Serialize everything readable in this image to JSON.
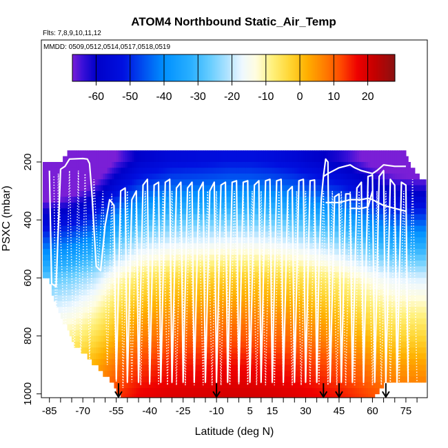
{
  "chart_data": {
    "type": "heatmap",
    "title": "ATOM4 Northbound Static_Air_Temp",
    "subtitle_flights": "Flts: 7,8,9,10,11,12",
    "subtitle_dates": "MMDD: 0509,0512,0514,0517,0518,0519",
    "xlabel": "Latitude (deg N)",
    "ylabel": "PSXC (mbar)",
    "xlim": [
      -88,
      84
    ],
    "ylim": [
      1020,
      40
    ],
    "y_reversed": true,
    "grid": false,
    "legend": "colorbar-top",
    "x_ticks": [
      -85,
      -80,
      -75,
      -70,
      -65,
      -60,
      -55,
      -50,
      -45,
      -40,
      -35,
      -30,
      -25,
      -20,
      -15,
      -10,
      -5,
      0,
      5,
      10,
      15,
      20,
      25,
      30,
      35,
      40,
      45,
      50,
      55,
      60,
      65,
      70,
      75,
      80
    ],
    "x_tick_labels": [
      {
        "value": -85,
        "label": "-85"
      },
      {
        "value": -70,
        "label": "-70"
      },
      {
        "value": -55,
        "label": "-55"
      },
      {
        "value": -40,
        "label": "-40"
      },
      {
        "value": -25,
        "label": "-25"
      },
      {
        "value": -10,
        "label": "-10"
      },
      {
        "value": 5,
        "label": "5"
      },
      {
        "value": 15,
        "label": "15"
      },
      {
        "value": 30,
        "label": "30"
      },
      {
        "value": 45,
        "label": "45"
      },
      {
        "value": 60,
        "label": "60"
      },
      {
        "value": 75,
        "label": "75"
      }
    ],
    "y_ticks": [
      {
        "value": 200,
        "label": "200"
      },
      {
        "value": 400,
        "label": "400"
      },
      {
        "value": 600,
        "label": "600"
      },
      {
        "value": 800,
        "label": "800"
      },
      {
        "value": 1000,
        "label": "1000"
      }
    ],
    "colorbar": {
      "range": [
        -67,
        28
      ],
      "ticks": [
        -60,
        -50,
        -40,
        -30,
        -20,
        -10,
        0,
        10,
        20
      ],
      "tick_labels": [
        "-60",
        "-50",
        "-40",
        "-30",
        "-20",
        "-10",
        "0",
        "10",
        "20"
      ],
      "stops": [
        {
          "v": -67,
          "c": "#7a1fd6"
        },
        {
          "v": -64,
          "c": "#3a10d8"
        },
        {
          "v": -60,
          "c": "#0000c8"
        },
        {
          "v": -52,
          "c": "#0010e0"
        },
        {
          "v": -46,
          "c": "#0050f0"
        },
        {
          "v": -40,
          "c": "#0090ff"
        },
        {
          "v": -32,
          "c": "#2ab0ff"
        },
        {
          "v": -26,
          "c": "#6ccfff"
        },
        {
          "v": -21,
          "c": "#b4e4ff"
        },
        {
          "v": -17,
          "c": "#eef8ff"
        },
        {
          "v": -13,
          "c": "#fffde0"
        },
        {
          "v": -8,
          "c": "#fff07a"
        },
        {
          "v": -3,
          "c": "#ffd634"
        },
        {
          "v": 2,
          "c": "#ffb000"
        },
        {
          "v": 7,
          "c": "#ff8000"
        },
        {
          "v": 12,
          "c": "#ff4a00"
        },
        {
          "v": 17,
          "c": "#ee0000"
        },
        {
          "v": 22,
          "c": "#c40000"
        },
        {
          "v": 28,
          "c": "#8a1212"
        }
      ]
    },
    "temperature_profile_by_pressure": [
      {
        "p": 190,
        "t": -57
      },
      {
        "p": 300,
        "t": -44
      },
      {
        "p": 400,
        "t": -30
      },
      {
        "p": 500,
        "t": -17
      },
      {
        "p": 600,
        "t": -5
      },
      {
        "p": 700,
        "t": 2
      },
      {
        "p": 800,
        "t": 8
      },
      {
        "p": 900,
        "t": 14
      },
      {
        "p": 1000,
        "t": 18
      }
    ],
    "latitude_bands": [
      {
        "lat": -88,
        "offset": -30
      },
      {
        "lat": -85,
        "offset": -30
      },
      {
        "lat": -75,
        "offset": -27
      },
      {
        "lat": -65,
        "offset": -21
      },
      {
        "lat": -55,
        "offset": -10
      },
      {
        "lat": -45,
        "offset": -2
      },
      {
        "lat": -30,
        "offset": 2
      },
      {
        "lat": -15,
        "offset": 3
      },
      {
        "lat": -5,
        "offset": 4
      },
      {
        "lat": 5,
        "offset": 4
      },
      {
        "lat": 15,
        "offset": 3
      },
      {
        "lat": 25,
        "offset": 1
      },
      {
        "lat": 35,
        "offset": -2
      },
      {
        "lat": 45,
        "offset": -5
      },
      {
        "lat": 55,
        "offset": -10
      },
      {
        "lat": 62,
        "offset": -14
      },
      {
        "lat": 70,
        "offset": -17
      },
      {
        "lat": 80,
        "offset": -18
      },
      {
        "lat": 84,
        "offset": -18
      }
    ],
    "domain_bottom_pressure": [
      {
        "lat": -85,
        "p": 600
      },
      {
        "lat": -82,
        "p": 700
      },
      {
        "lat": -78,
        "p": 760
      },
      {
        "lat": -74,
        "p": 830
      },
      {
        "lat": -68,
        "p": 870
      },
      {
        "lat": -62,
        "p": 920
      },
      {
        "lat": -57,
        "p": 960
      },
      {
        "lat": -52,
        "p": 1020
      },
      {
        "lat": 60,
        "p": 1020
      },
      {
        "lat": 66,
        "p": 960
      },
      {
        "lat": 72,
        "p": 950
      },
      {
        "lat": 78,
        "p": 960
      },
      {
        "lat": 82,
        "p": 960
      }
    ],
    "domain_top_pressure": [
      {
        "lat": -85,
        "p": 210
      },
      {
        "lat": -79,
        "p": 195
      },
      {
        "lat": -77,
        "p": 165
      },
      {
        "lat": 75,
        "p": 165
      },
      {
        "lat": 76,
        "p": 205
      },
      {
        "lat": 80,
        "p": 240
      },
      {
        "lat": 82,
        "p": 265
      }
    ],
    "solid_flight_tracks": [
      [
        [
          -85,
          230
        ],
        [
          -84,
          620
        ],
        [
          -82,
          630
        ],
        [
          -80,
          225
        ],
        [
          -78,
          215
        ],
        [
          -76,
          190
        ],
        [
          -70,
          188
        ],
        [
          -68,
          190
        ],
        [
          -67,
          205
        ],
        [
          -66,
          300
        ],
        [
          -64,
          560
        ],
        [
          -62,
          575
        ],
        [
          -60,
          420
        ],
        [
          -58,
          330
        ],
        [
          -56,
          350
        ],
        [
          -55,
          950
        ],
        [
          -53,
          300
        ],
        [
          -51,
          290
        ],
        [
          -50,
          960
        ],
        [
          -48,
          330
        ],
        [
          -46,
          300
        ],
        [
          -45,
          960
        ],
        [
          -43,
          280
        ],
        [
          -41,
          260
        ],
        [
          -40,
          960
        ],
        [
          -38,
          280
        ],
        [
          -36,
          270
        ],
        [
          -35,
          960
        ],
        [
          -33,
          270
        ],
        [
          -31,
          260
        ],
        [
          -30,
          960
        ],
        [
          -28,
          290
        ],
        [
          -26,
          270
        ],
        [
          -25,
          960
        ],
        [
          -23,
          290
        ],
        [
          -21,
          270
        ],
        [
          -20,
          960
        ],
        [
          -18,
          300
        ],
        [
          -16,
          270
        ],
        [
          -15,
          960
        ],
        [
          -13,
          300
        ],
        [
          -11,
          270
        ],
        [
          -10,
          960
        ],
        [
          -8,
          280
        ],
        [
          -6,
          270
        ],
        [
          -5,
          960
        ],
        [
          -3,
          270
        ],
        [
          -1,
          265
        ],
        [
          0,
          960
        ],
        [
          2,
          270
        ],
        [
          4,
          265
        ],
        [
          5,
          960
        ],
        [
          7,
          280
        ],
        [
          9,
          265
        ],
        [
          10,
          960
        ],
        [
          12,
          265
        ],
        [
          14,
          260
        ],
        [
          15,
          960
        ],
        [
          17,
          265
        ],
        [
          19,
          260
        ],
        [
          20,
          960
        ],
        [
          22,
          300
        ],
        [
          24,
          285
        ],
        [
          25,
          960
        ],
        [
          27,
          265
        ],
        [
          29,
          260
        ],
        [
          30,
          960
        ],
        [
          32,
          265
        ],
        [
          34,
          262
        ],
        [
          35,
          960
        ],
        [
          36,
          560
        ],
        [
          37,
          330
        ],
        [
          38,
          250
        ],
        [
          39,
          190
        ],
        [
          40,
          200
        ],
        [
          41,
          960
        ],
        [
          43,
          320
        ],
        [
          45,
          310
        ],
        [
          46,
          960
        ],
        [
          48,
          310
        ],
        [
          50,
          310
        ],
        [
          51,
          960
        ],
        [
          53,
          290
        ],
        [
          55,
          270
        ],
        [
          56,
          960
        ],
        [
          58,
          250
        ],
        [
          60,
          245
        ],
        [
          61,
          960
        ],
        [
          63,
          250
        ],
        [
          65,
          230
        ],
        [
          66,
          960
        ],
        [
          68,
          260
        ],
        [
          70,
          280
        ],
        [
          71,
          960
        ],
        [
          73,
          270
        ],
        [
          75,
          280
        ],
        [
          76,
          960
        ]
      ],
      [
        [
          38,
          250
        ],
        [
          40,
          240
        ],
        [
          45,
          220
        ],
        [
          50,
          210
        ],
        [
          52,
          220
        ],
        [
          55,
          230
        ],
        [
          60,
          240
        ],
        [
          62,
          230
        ],
        [
          65,
          210
        ],
        [
          70,
          215
        ],
        [
          75,
          215
        ]
      ],
      [
        [
          39,
          340
        ],
        [
          45,
          340
        ],
        [
          50,
          330
        ],
        [
          55,
          330
        ],
        [
          58,
          325
        ],
        [
          60,
          330
        ],
        [
          65,
          350
        ],
        [
          70,
          360
        ],
        [
          75,
          370
        ]
      ],
      [
        [
          50,
          360
        ],
        [
          55,
          360
        ],
        [
          58,
          355
        ],
        [
          60,
          300
        ]
      ]
    ],
    "dotted_flight_tracks": [
      [
        [
          -83,
          250
        ],
        [
          -82,
          870
        ],
        [
          -81,
          240
        ],
        [
          -78,
          860
        ],
        [
          -76,
          230
        ],
        [
          -74,
          920
        ],
        [
          -72,
          230
        ],
        [
          -71,
          890
        ],
        [
          -69,
          240
        ],
        [
          -67,
          880
        ],
        [
          -65,
          260
        ],
        [
          -63,
          560
        ],
        [
          -61,
          300
        ],
        [
          -59,
          900
        ],
        [
          -57,
          310
        ],
        [
          -55,
          960
        ],
        [
          -53,
          320
        ],
        [
          -52,
          980
        ],
        [
          -50,
          300
        ],
        [
          -48,
          960
        ],
        [
          -46,
          310
        ],
        [
          -44,
          970
        ],
        [
          -42,
          300
        ],
        [
          -40,
          970
        ],
        [
          -38,
          300
        ],
        [
          -36,
          970
        ],
        [
          -34,
          300
        ],
        [
          -32,
          970
        ],
        [
          -30,
          300
        ],
        [
          -28,
          970
        ],
        [
          -26,
          300
        ],
        [
          -24,
          970
        ],
        [
          -22,
          300
        ],
        [
          -20,
          970
        ],
        [
          -18,
          300
        ],
        [
          -16,
          970
        ],
        [
          -14,
          300
        ],
        [
          -12,
          970
        ],
        [
          -10,
          300
        ],
        [
          -8,
          970
        ],
        [
          -6,
          300
        ],
        [
          -4,
          970
        ],
        [
          -2,
          300
        ],
        [
          0,
          970
        ],
        [
          2,
          300
        ],
        [
          4,
          970
        ],
        [
          6,
          300
        ],
        [
          8,
          970
        ],
        [
          10,
          300
        ],
        [
          12,
          970
        ],
        [
          14,
          300
        ],
        [
          16,
          970
        ],
        [
          18,
          300
        ],
        [
          20,
          970
        ],
        [
          22,
          300
        ],
        [
          24,
          970
        ],
        [
          26,
          300
        ],
        [
          28,
          970
        ],
        [
          30,
          300
        ],
        [
          32,
          970
        ],
        [
          34,
          300
        ],
        [
          36,
          970
        ],
        [
          38,
          300
        ],
        [
          40,
          970
        ],
        [
          42,
          300
        ],
        [
          44,
          970
        ],
        [
          46,
          300
        ],
        [
          48,
          970
        ],
        [
          50,
          300
        ],
        [
          52,
          970
        ],
        [
          54,
          300
        ],
        [
          56,
          970
        ],
        [
          58,
          300
        ],
        [
          60,
          970
        ],
        [
          62,
          300
        ],
        [
          64,
          970
        ],
        [
          66,
          300
        ],
        [
          68,
          970
        ],
        [
          70,
          300
        ],
        [
          72,
          970
        ],
        [
          74,
          300
        ],
        [
          76,
          970
        ],
        [
          78,
          260
        ],
        [
          80,
          970
        ]
      ]
    ],
    "arrow_markers_lat": [
      -54,
      -10,
      38,
      45,
      66
    ]
  }
}
